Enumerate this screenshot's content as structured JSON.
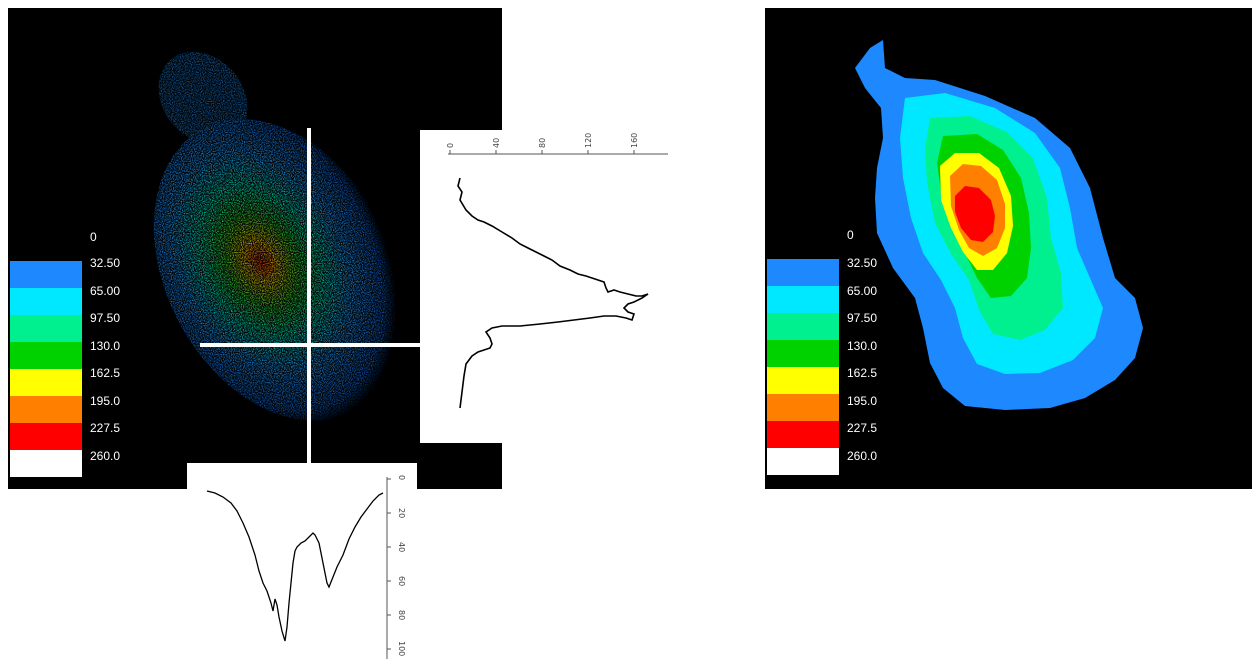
{
  "legend": {
    "zero_label": "0",
    "items": [
      {
        "label": "32.50",
        "color": "#1e88ff"
      },
      {
        "label": "65.00",
        "color": "#00e8ff"
      },
      {
        "label": "97.50",
        "color": "#00f090"
      },
      {
        "label": "130.0",
        "color": "#00d200"
      },
      {
        "label": "162.5",
        "color": "#ffff00"
      },
      {
        "label": "195.0",
        "color": "#ff8000"
      },
      {
        "label": "227.5",
        "color": "#ff0000"
      },
      {
        "label": "260.0",
        "color": "#ffffff"
      }
    ]
  },
  "vertical_profile": {
    "tick_labels": [
      "0",
      "40",
      "80",
      "120",
      "160"
    ]
  },
  "horizontal_profile": {
    "tick_labels": [
      "0",
      "20",
      "40",
      "60",
      "80",
      "100"
    ]
  },
  "colors": {
    "background": "#000000",
    "crosshair": "#ffffff",
    "profile_line": "#000000"
  }
}
